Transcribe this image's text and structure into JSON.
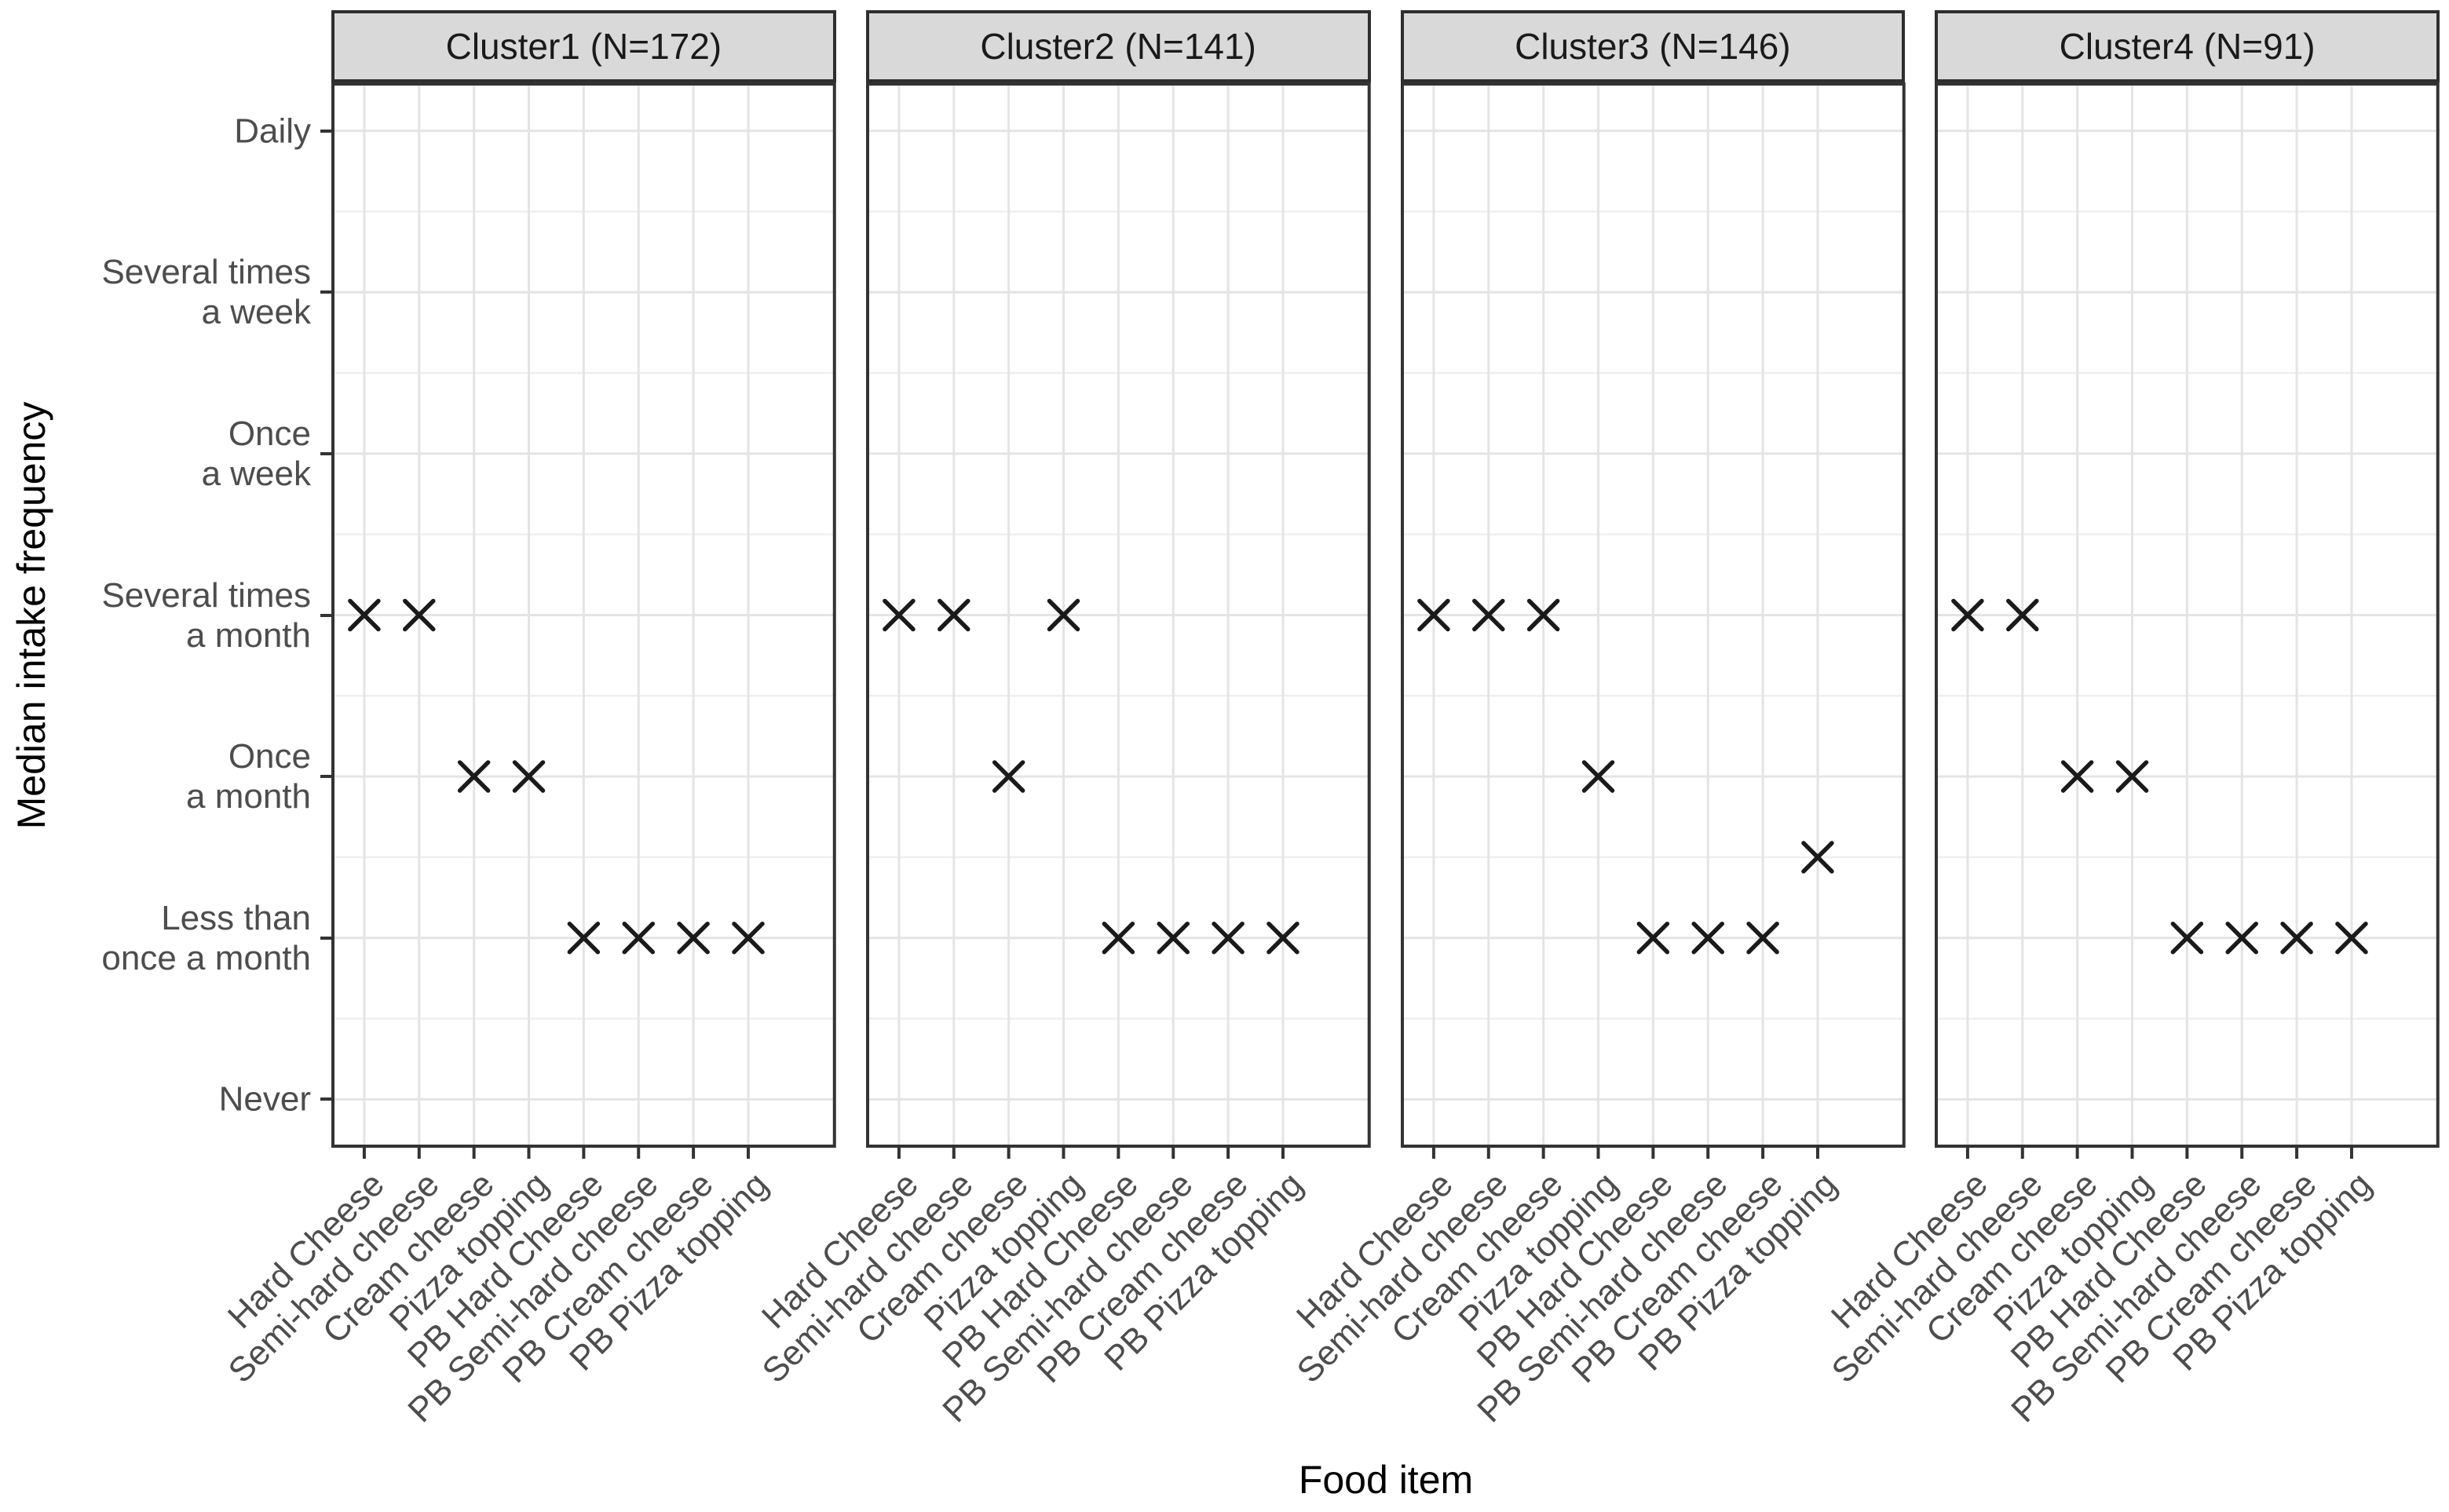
{
  "page": {
    "background": "#ffffff"
  },
  "chart_data": {
    "type": "scatter",
    "marker": "x-cross",
    "title": "",
    "xlabel": "Food item",
    "ylabel": "Median intake frequency",
    "legend": "none",
    "x_categories": [
      "Hard Cheese",
      "Semi-hard cheese",
      "Cream cheese",
      "Pizza topping",
      "PB Hard Cheese",
      "PB Semi-hard cheese",
      "PB Cream cheese",
      "PB Pizza topping"
    ],
    "y_scale": {
      "levels": [
        {
          "value": 0,
          "label": "Never"
        },
        {
          "value": 1,
          "label": "Less than once a month"
        },
        {
          "value": 2,
          "label": "Once a month"
        },
        {
          "value": 3,
          "label": "Several times a month"
        },
        {
          "value": 4,
          "label": "Once a week"
        },
        {
          "value": 5,
          "label": "Several times a week"
        },
        {
          "value": 6,
          "label": "Daily"
        }
      ],
      "tick_label_lines": {
        "0": [
          "Never"
        ],
        "1": [
          "Less than",
          "once a month"
        ],
        "2": [
          "Once",
          "a month"
        ],
        "3": [
          "Several times",
          "a month"
        ],
        "4": [
          "Once",
          "a week"
        ],
        "5": [
          "Several times",
          "a week"
        ],
        "6": [
          "Daily"
        ]
      },
      "ylim": [
        -0.3,
        6.3
      ]
    },
    "panels": [
      {
        "title": "Cluster1 (N=172)",
        "n": 172,
        "values": [
          3,
          3,
          2,
          2,
          1,
          1,
          1,
          1
        ]
      },
      {
        "title": "Cluster2 (N=141)",
        "n": 141,
        "values": [
          3,
          3,
          2,
          3,
          1,
          1,
          1,
          1
        ]
      },
      {
        "title": "Cluster3 (N=146)",
        "n": 146,
        "values": [
          3,
          3,
          3,
          2,
          1,
          1,
          1,
          1.5
        ]
      },
      {
        "title": "Cluster4 (N=91)",
        "n": 91,
        "values": [
          3,
          3,
          2,
          2,
          1,
          1,
          1,
          1
        ]
      }
    ],
    "grid": {
      "h_major": true,
      "h_minor": true,
      "v_major": true,
      "v_minor": false
    },
    "colors": {
      "marker": "#1a1a1a",
      "grid_major": "#e4e4e4",
      "grid_minor": "#efefef",
      "panel_bg": "#ffffff",
      "panel_border": "#333333",
      "strip_bg": "#d9d9d9",
      "strip_border": "#2e2e2e",
      "strip_text": "#1a1a1a",
      "tick_mark": "#333333",
      "tick_label": "#4d4d4d",
      "axis_title": "#000000"
    }
  }
}
